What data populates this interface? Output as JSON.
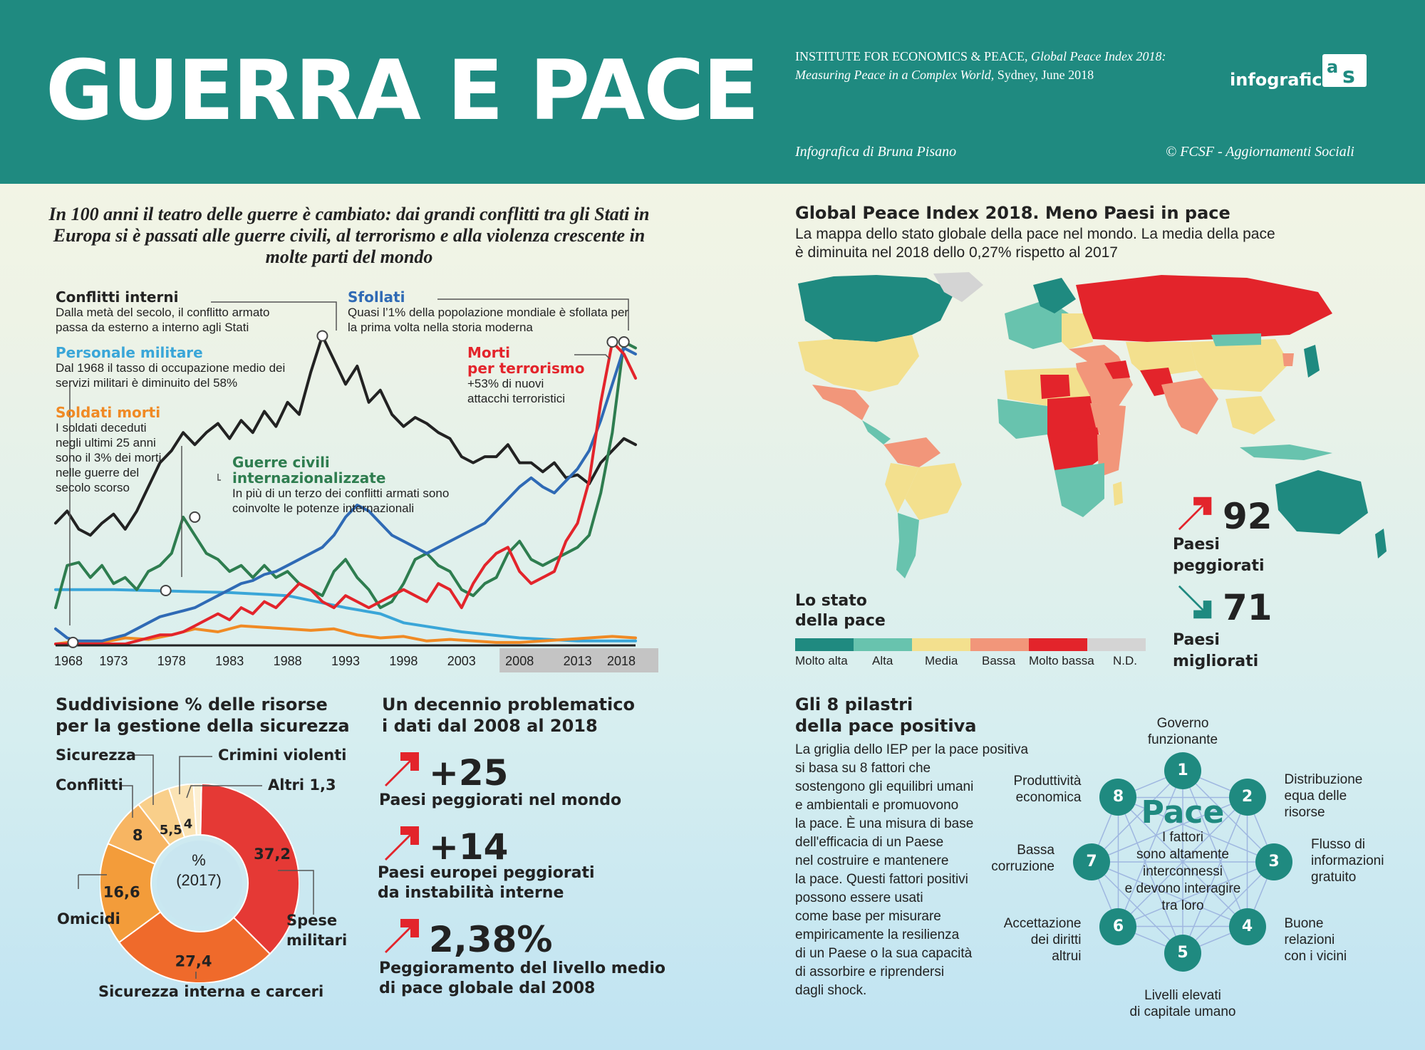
{
  "header": {
    "title": "GUERRA E PACE",
    "source_1": "INSTITUTE FOR ECONOMICS & PEACE,",
    "source_2": "Global Peace Index 2018:",
    "source_3": "Measuring Peace in a Complex World,",
    "source_4": "Sydney, June 2018",
    "logo": "infografica",
    "credit": "Infografica di Bruna Pisano",
    "copyright": "© FCSF - Aggiornamenti Sociali"
  },
  "intro": "In 100 anni il teatro delle guerre è cambiato: dai grandi conflitti tra gli Stati in Europa si è passati alle guerre civili, al terrorismo e alla violenza crescente in molte parti del mondo",
  "annotations": {
    "conflitti_h": "Conflitti interni",
    "conflitti_t": "Dalla metà del secolo, il conflitto armato passa da esterno a interno agli Stati",
    "personale_h": "Personale militare",
    "personale_t": "Dal 1968 il tasso di occupazione medio dei servizi militari è diminuito del 58%",
    "soldati_h": "Soldati morti",
    "soldati_t": "I soldati deceduti negli ultimi 25 anni sono il 3% dei morti nelle guerre del secolo scorso",
    "guerre_h": "Guerre civili internazionalizzate",
    "guerre_t": "In più di un terzo dei conflitti armati sono coinvolte le potenze internazionali",
    "sfollati_h": "Sfollati",
    "sfollati_t": "Quasi l’1% della popolazione mondiale è sfollata per la prima volta nella storia moderna",
    "morti_h1": "Morti",
    "morti_h2": "per terrorismo",
    "morti_t": "+53% di nuovi attacchi terroristici"
  },
  "chart_data": {
    "type": "line",
    "x_ticks": [
      "1968",
      "1973",
      "1978",
      "1983",
      "1988",
      "1993",
      "1998",
      "2003",
      "2008",
      "2013",
      "2018"
    ],
    "xlim": [
      1968,
      2018
    ],
    "ylim": [
      0,
      100
    ],
    "highlight_range": [
      2008,
      2018
    ],
    "series": [
      {
        "name": "Conflitti interni",
        "color": "#222222",
        "x": [
          1968,
          1969,
          1970,
          1971,
          1972,
          1973,
          1974,
          1975,
          1976,
          1977,
          1978,
          1979,
          1980,
          1981,
          1982,
          1983,
          1984,
          1985,
          1986,
          1987,
          1988,
          1989,
          1990,
          1991,
          1992,
          1993,
          1994,
          1995,
          1996,
          1997,
          1998,
          1999,
          2000,
          2001,
          2002,
          2003,
          2004,
          2005,
          2006,
          2007,
          2008,
          2009,
          2010,
          2011,
          2012,
          2013,
          2014,
          2015,
          2016,
          2017,
          2018
        ],
        "y": [
          40,
          44,
          38,
          36,
          40,
          43,
          38,
          44,
          52,
          60,
          64,
          70,
          66,
          70,
          73,
          68,
          74,
          70,
          77,
          72,
          80,
          76,
          90,
          102,
          94,
          86,
          92,
          80,
          84,
          76,
          72,
          75,
          73,
          70,
          68,
          62,
          60,
          62,
          62,
          66,
          60,
          60,
          57,
          60,
          55,
          56,
          53,
          60,
          64,
          68,
          66
        ]
      },
      {
        "name": "Personale militare",
        "color": "#3aa6d8",
        "x": [
          1968,
          1973,
          1978,
          1983,
          1988,
          1993,
          1996,
          1998,
          2003,
          2008,
          2013,
          2018
        ],
        "y": [
          18,
          18,
          17.5,
          17,
          16,
          12,
          10,
          7,
          4,
          2,
          1,
          1
        ]
      },
      {
        "name": "Soldati morti",
        "color": "#f08a24",
        "x": [
          1968,
          1970,
          1972,
          1974,
          1976,
          1978,
          1980,
          1982,
          1984,
          1986,
          1988,
          1990,
          1992,
          1994,
          1996,
          1998,
          2000,
          2002,
          2004,
          2006,
          2008,
          2010,
          2012,
          2014,
          2016,
          2018
        ],
        "y": [
          0,
          1,
          0.5,
          2,
          1.5,
          3,
          5,
          4,
          6,
          5.5,
          5,
          4.5,
          5,
          3,
          2,
          2.5,
          1,
          1.5,
          1,
          0.5,
          0.5,
          1,
          1.5,
          2,
          2.5,
          2
        ]
      },
      {
        "name": "Guerre civili internazionalizzate",
        "color": "#2e7d4f",
        "x": [
          1968,
          1969,
          1970,
          1971,
          1972,
          1973,
          1974,
          1975,
          1976,
          1977,
          1978,
          1979,
          1980,
          1981,
          1982,
          1983,
          1984,
          1985,
          1986,
          1987,
          1988,
          1989,
          1990,
          1991,
          1992,
          1993,
          1994,
          1995,
          1996,
          1997,
          1998,
          1999,
          2000,
          2001,
          2002,
          2003,
          2004,
          2005,
          2006,
          2007,
          2008,
          2009,
          2010,
          2011,
          2012,
          2013,
          2014,
          2015,
          2016,
          2017,
          2018
        ],
        "y": [
          12,
          26,
          27,
          22,
          26,
          20,
          22,
          18,
          24,
          26,
          30,
          42,
          36,
          30,
          28,
          24,
          26,
          22,
          26,
          22,
          24,
          20,
          18,
          16,
          24,
          28,
          22,
          18,
          12,
          14,
          20,
          28,
          30,
          26,
          24,
          18,
          16,
          20,
          22,
          30,
          34,
          28,
          26,
          28,
          30,
          32,
          36,
          50,
          70,
          100,
          98
        ]
      },
      {
        "name": "Sfollati",
        "color": "#2f6ab5",
        "x": [
          1968,
          1969,
          1970,
          1971,
          1972,
          1973,
          1974,
          1975,
          1976,
          1977,
          1978,
          1979,
          1980,
          1981,
          1982,
          1983,
          1984,
          1985,
          1986,
          1987,
          1988,
          1989,
          1990,
          1991,
          1992,
          1993,
          1994,
          1995,
          1996,
          1997,
          1998,
          1999,
          2000,
          2001,
          2002,
          2003,
          2004,
          2005,
          2006,
          2007,
          2008,
          2009,
          2010,
          2011,
          2012,
          2013,
          2014,
          2015,
          2016,
          2017,
          2018
        ],
        "y": [
          5,
          2,
          1,
          1,
          1,
          2,
          3,
          5,
          7,
          9,
          10,
          11,
          12,
          14,
          16,
          18,
          20,
          21,
          23,
          24,
          26,
          28,
          30,
          32,
          36,
          42,
          46,
          44,
          40,
          36,
          34,
          32,
          30,
          32,
          34,
          36,
          38,
          40,
          44,
          48,
          52,
          55,
          52,
          50,
          54,
          58,
          64,
          74,
          86,
          98,
          96
        ]
      },
      {
        "name": "Morti per terrorismo",
        "color": "#e3242b",
        "x": [
          1968,
          1970,
          1972,
          1974,
          1975,
          1976,
          1977,
          1978,
          1979,
          1980,
          1981,
          1982,
          1983,
          1984,
          1985,
          1986,
          1987,
          1988,
          1989,
          1990,
          1991,
          1992,
          1993,
          1994,
          1995,
          1996,
          1997,
          1998,
          1999,
          2000,
          2001,
          2002,
          2003,
          2004,
          2005,
          2006,
          2007,
          2008,
          2009,
          2010,
          2011,
          2012,
          2013,
          2014,
          2015,
          2016,
          2017,
          2018
        ],
        "y": [
          0,
          0,
          0,
          0,
          1,
          2,
          3,
          3,
          4,
          6,
          8,
          10,
          8,
          12,
          10,
          14,
          12,
          16,
          20,
          18,
          14,
          12,
          16,
          14,
          12,
          14,
          16,
          18,
          16,
          14,
          20,
          18,
          12,
          20,
          26,
          30,
          32,
          24,
          20,
          22,
          24,
          34,
          40,
          54,
          80,
          100,
          96,
          88
        ]
      }
    ]
  },
  "resources": {
    "title_1": "Suddivisione % delle risorse",
    "title_2": "per la gestione della sicurezza",
    "center_1": "%",
    "center_2": "(2017)",
    "chart_data": {
      "type": "pie",
      "year": "2017",
      "slices": [
        {
          "label": "Spese militari",
          "value": 37.2,
          "value_label": "37,2",
          "color": "#e53935"
        },
        {
          "label": "Sicurezza interna e carceri",
          "value": 27.4,
          "value_label": "27,4",
          "color": "#ef6a2b"
        },
        {
          "label": "Omicidi",
          "value": 16.6,
          "value_label": "16,6",
          "color": "#f39c3a"
        },
        {
          "label": "Conflitti",
          "value": 8,
          "value_label": "8",
          "color": "#f7b562"
        },
        {
          "label": "Sicurezza",
          "value": 5.5,
          "value_label": "5,5",
          "color": "#f9cf8a"
        },
        {
          "label": "Crimini violenti",
          "value": 4,
          "value_label": "4",
          "color": "#fbe3b4"
        },
        {
          "label": "Altri 1,3",
          "value": 1.3,
          "value_label": "",
          "color": "#fdf0d4"
        }
      ]
    },
    "labels": {
      "sicurezza": "Sicurezza",
      "crimini": "Crimini violenti",
      "conflitti": "Conflitti",
      "altri": "Altri 1,3",
      "omicidi": "Omicidi",
      "spese_1": "Spese",
      "spese_2": "militari",
      "carceri": "Sicurezza interna e carceri"
    }
  },
  "decade": {
    "title_1": "Un decennio problematico",
    "title_2": "i dati dal 2008 al 2018",
    "stats": [
      {
        "value": "+25",
        "label_1": "Paesi peggiorati nel mondo",
        "label_2": ""
      },
      {
        "value": "+14",
        "label_1": "Paesi europei peggiorati",
        "label_2": "da instabilità interne"
      },
      {
        "value": "2,38%",
        "label_1": "Peggioramento del livello medio",
        "label_2": "di pace globale dal 2008"
      }
    ]
  },
  "peace_index": {
    "title": "Global Peace Index 2018. Meno Paesi in pace",
    "sub_1": "La mappa dello stato globale della pace nel mondo. La media della pace",
    "sub_2": "è diminuita nel 2018 dello 0,27% rispetto al 2017",
    "worse_value": "92",
    "worse_1": "Paesi",
    "worse_2": "peggiorati",
    "better_value": "71",
    "better_1": "Paesi",
    "better_2": "migliorati",
    "legend_title_1": "Lo stato",
    "legend_title_2": "della pace",
    "legend": [
      {
        "label": "Molto alta",
        "color": "#1f8a80"
      },
      {
        "label": "Alta",
        "color": "#68c3ae"
      },
      {
        "label": "Media",
        "color": "#f3e08e"
      },
      {
        "label": "Bassa",
        "color": "#f2967a"
      },
      {
        "label": "Molto bassa",
        "color": "#e3242b"
      },
      {
        "label": "N.D.",
        "color": "#d4d4d4"
      }
    ]
  },
  "pillars": {
    "title_1": "Gli 8 pilastri",
    "title_2": "della pace positiva",
    "body": [
      "La griglia dello IEP per la pace positiva",
      "si basa su 8 fattori che",
      "sostengono gli equilibri umani",
      "e ambientali e promuovono",
      "la pace. È una misura di base",
      "dell'efficacia di un Paese",
      "nel costruire e mantenere",
      "la pace. Questi fattori positivi",
      "possono essere usati",
      "come base per misurare",
      "empiricamente la resilienza",
      "di un Paese o la sua capacità",
      "di assorbire e riprendersi",
      "dagli shock."
    ],
    "center_title": "Pace",
    "center_text": [
      "I fattori",
      "sono altamente",
      "interconnessi",
      "e devono interagire",
      "tra loro"
    ],
    "items": [
      {
        "n": "1",
        "l1": "Governo",
        "l2": "funzionante",
        "l3": ""
      },
      {
        "n": "2",
        "l1": "Distribuzione",
        "l2": "equa delle",
        "l3": "risorse"
      },
      {
        "n": "3",
        "l1": "Flusso di",
        "l2": "informazioni",
        "l3": "gratuito"
      },
      {
        "n": "4",
        "l1": "Buone",
        "l2": "relazioni",
        "l3": "con i vicini"
      },
      {
        "n": "5",
        "l1": "Livelli elevati",
        "l2": "di capitale umano",
        "l3": ""
      },
      {
        "n": "6",
        "l1": "Accettazione",
        "l2": "dei diritti",
        "l3": "altrui"
      },
      {
        "n": "7",
        "l1": "Bassa",
        "l2": "corruzione",
        "l3": ""
      },
      {
        "n": "8",
        "l1": "Produttività",
        "l2": "economica",
        "l3": ""
      }
    ]
  }
}
